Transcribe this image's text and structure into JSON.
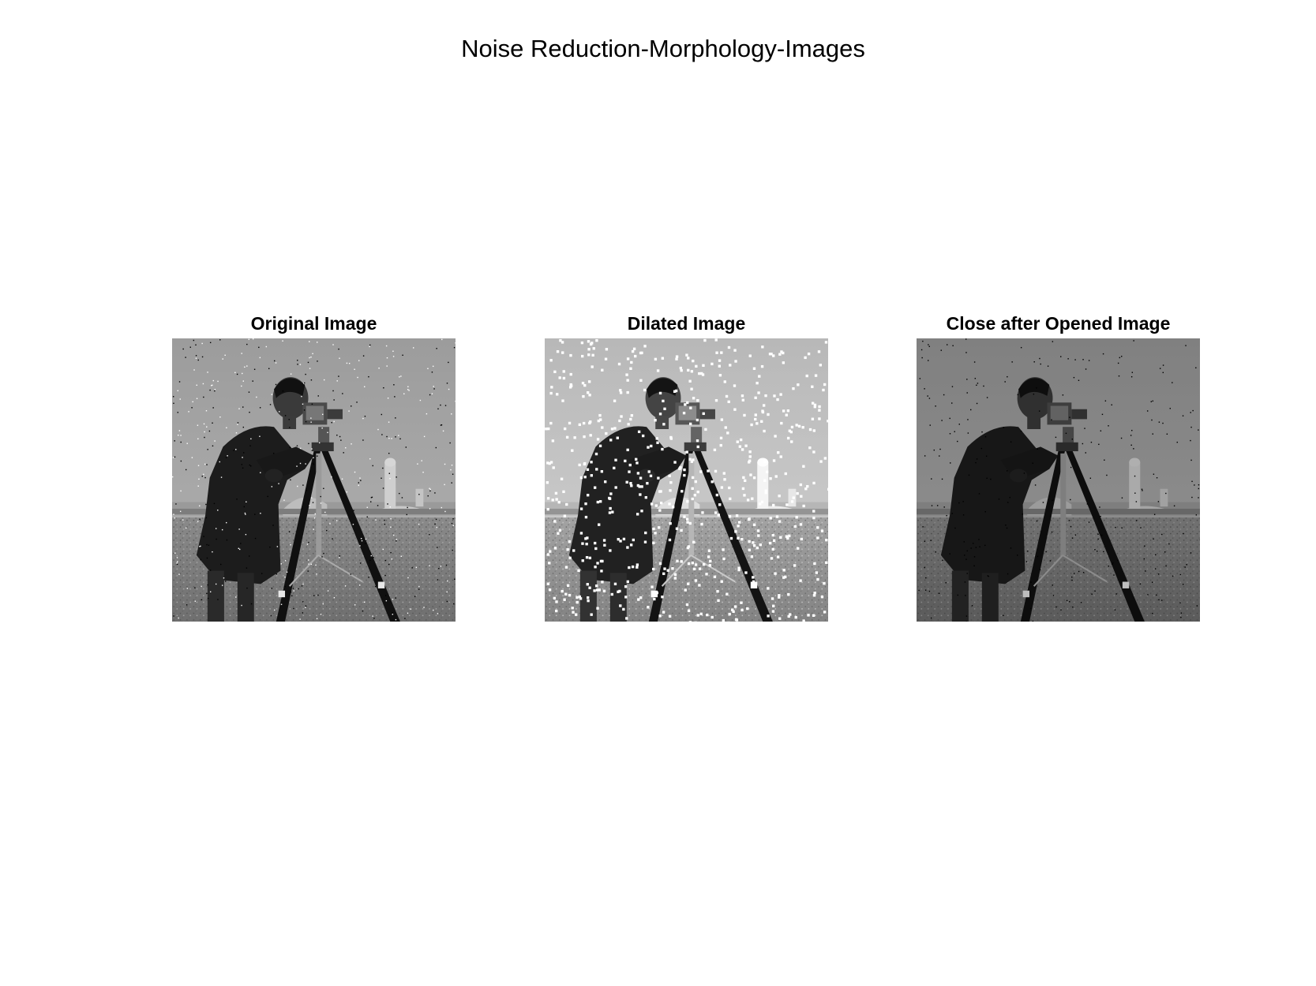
{
  "figure": {
    "title": "Noise Reduction-Morphology-Images"
  },
  "panels": [
    {
      "title": "Original Image",
      "noise": "salt-and-pepper",
      "tone": "normal"
    },
    {
      "title": "Dilated Image",
      "noise": "enlarged white specks",
      "tone": "lighter"
    },
    {
      "title": "Close after Opened Image",
      "noise": "sparse dark specks",
      "tone": "darker"
    }
  ]
}
